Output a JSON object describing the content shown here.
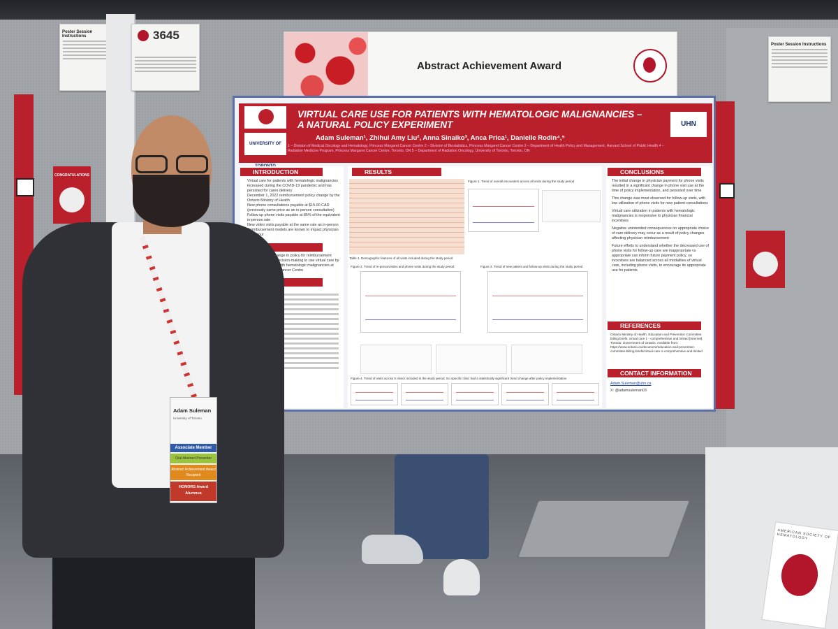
{
  "award": {
    "title": "Abstract Achievement Award"
  },
  "poster_number": "3645",
  "session_instructions": {
    "left": "Poster Session Instructions",
    "right": "Poster Session Instructions"
  },
  "poster": {
    "title": "VIRTUAL CARE USE FOR PATIENTS WITH HEMATOLOGIC MALIGNANCIES – A NATURAL POLICY EXPERIMENT",
    "authors": "Adam Suleman¹, Zhihui Amy Liu², Anna Sinaiko³, Anca Prica¹, Danielle Rodin⁴,⁵",
    "affiliations": "1 – Division of Medical Oncology and Hematology, Princess Margaret Cancer Centre 2 – Division of Biostatistics, Princess Margaret Cancer Centre 3 – Department of Health Policy and Management, Harvard School of Public Health 4 – Radiation Medicine Program, Princess Margaret Cancer Centre, Toronto, ON 5 – Department of Radiation Oncology, University of Toronto, Toronto, ON",
    "uoft_logo": "UNIVERSITY OF TORONTO",
    "uhn_logo": "UHN",
    "sections": {
      "introduction": "INTRODUCTION",
      "aim": "AIM",
      "methods": "METHODS",
      "results": "RESULTS",
      "conclusions": "CONCLUSIONS",
      "references": "REFERENCES",
      "contact": "CONTACT INFORMATION"
    },
    "intro_bullets": [
      "Virtual care for patients with hematologic malignancies increased during the COVID-19 pandemic and has persisted for cares delivery",
      "December 1, 2022 reimbursement policy change by the Ontario Ministry of Health",
      "New phone consultations payable at $15.00 CAD (previously same price as an in-person consultation)",
      "Follow up phone visits payable at 85% of the equivalent in-person rate",
      "New video visits payable at the same rate as in-person",
      "Reimbursement models are known to impact physician behaviour"
    ],
    "aim_text": "To assess how change in policy for reimbursement affects physician decision-making to use virtual care by phone for patients with hematologic malignancies at Princess Margaret Cancer Centre",
    "conclusion_bullets": [
      "The initial change in physician payment for phone visits resulted in a significant change in phone visit use at the time of policy implementation, and persisted over time",
      "This change was most observed for follow-up visits, with low utilization of phone visits for new patient consultations",
      "Virtual care utilization in patients with hematologic malignancies is responsive to physician financial incentives",
      "Negative unintended consequences on appropriate choice of care delivery may occur as a result of policy changes affecting physician reimbursement",
      "Future efforts to understand whether the decreased use of phone visits for follow-up care are inappropriate vs appropriate can inform future payment policy, so incentives are balanced across all modalities of virtual care, including phone visits, to encourage its appropriate use for patients"
    ],
    "references_text": "Ontario Ministry of Health. Education and Prevention Committee billing briefs: virtual care 1 - comprehensive and limited [Internet]. Toronto: Government of Ontario. Available from: https://www.ontario.ca/document/education-and-prevention-committee-billing-briefs/virtual-care-1-comprehensive-and-limited",
    "contact_email": "Adam.Suleman@uhn.ca",
    "contact_x": "X: @adamsuleman03",
    "table1_caption": "Table 1. Demographic features of all visits included during the study period",
    "fig1_caption": "Figure 1. Trend of overall encounters across all visits during the study period",
    "fig2_caption": "Figure 2. Trend of in-person/video and phone visits during the study period",
    "fig3_caption": "Figure 3. Trend of new patient and follow-up visits during the study period",
    "fig4_caption": "Figure 4. Trend of visits across 5 clinics included in the study period. No specific clinic had a statistically significant trend change after policy implementation"
  },
  "badge": {
    "name": "Adam Suleman",
    "org": "University of Toronto",
    "associate": "Associate Member",
    "oral": "Oral Abstract Presenter",
    "abstract": "Abstract Achievement Award Recipient",
    "honors": "HONORS Award Alumnus"
  },
  "side_card_left": "CONGRATULATIONS",
  "ash_sign": "AMERICAN SOCIETY OF HEMATOLOGY"
}
